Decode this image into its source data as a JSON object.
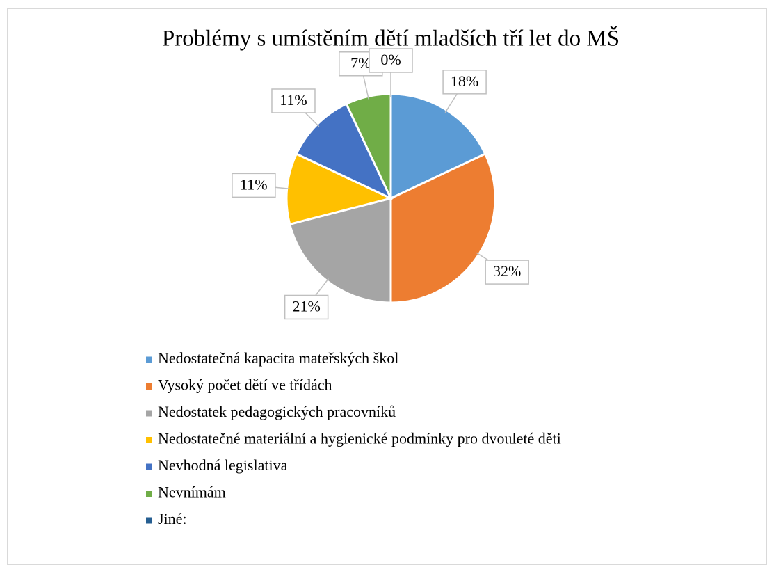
{
  "chart_data": {
    "type": "pie",
    "title": "Problémy s umístěním dětí mladších tří let do MŠ",
    "categories": [
      "Nedostatečná kapacita mateřských škol",
      "Vysoký počet dětí ve třídách",
      "Nedostatek pedagogických pracovníků",
      "Nedostatečné materiální a hygienické podmínky pro dvouleté děti",
      "Nevhodná legislativa",
      "Nevnímám",
      "Jiné:"
    ],
    "values": [
      18,
      32,
      21,
      11,
      11,
      7,
      0
    ],
    "value_labels": [
      "18%",
      "32%",
      "21%",
      "11%",
      "11%",
      "7%",
      "0%"
    ],
    "colors": [
      "#5b9bd5",
      "#ed7d31",
      "#a5a5a5",
      "#ffc000",
      "#4472c4",
      "#70ad47",
      "#255e91"
    ],
    "legend": "bottom"
  }
}
